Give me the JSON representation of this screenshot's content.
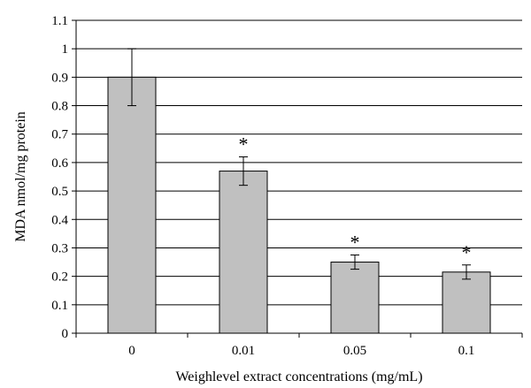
{
  "chart_data": {
    "type": "bar",
    "title": "",
    "xlabel": "Weighlevel extract concentrations (mg/mL)",
    "ylabel": "MDA nmol/mg protein",
    "categories": [
      "0",
      "0.01",
      "0.05",
      "0.1"
    ],
    "series": [
      {
        "values": [
          0.9,
          0.57,
          0.25,
          0.215
        ],
        "errors": [
          0.1,
          0.05,
          0.025,
          0.025
        ],
        "significance": [
          "",
          "*",
          "*",
          "*"
        ]
      }
    ],
    "ylim": [
      0,
      1.1
    ],
    "yticks": [
      "0",
      "0.1",
      "0.2",
      "0.3",
      "0.4",
      "0.5",
      "0.6",
      "0.7",
      "0.8",
      "0.9",
      "1",
      "1.1"
    ],
    "grid": true,
    "bar_color": "#c0c0c0",
    "edge_color": "#000000"
  }
}
